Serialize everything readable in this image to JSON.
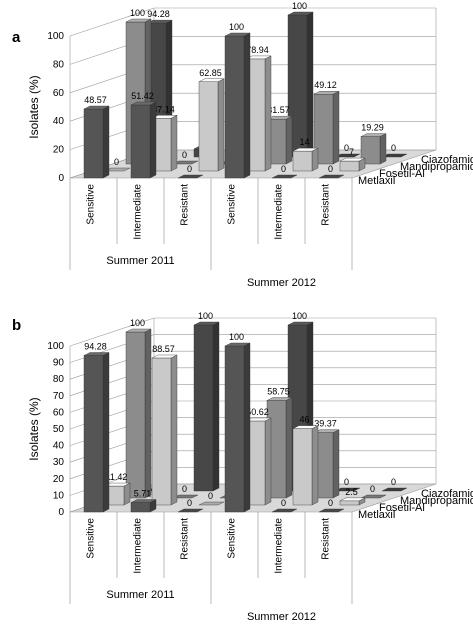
{
  "colors": {
    "Metlaxil": "#555555",
    "Fosetil-Al": "#c9c9c9",
    "Mandipropamid": "#8c8c8c",
    "Ciazofamid": "#474747",
    "grid": "#9a9a9a",
    "floor": "#d9d9d9"
  },
  "chart_data": [
    {
      "type": "bar",
      "panel_label": "a",
      "ylabel": "Isolates (%)",
      "ylim": [
        0,
        100
      ],
      "yticks": [
        0,
        20,
        40,
        60,
        80,
        100
      ],
      "categories": [
        "Sensitive",
        "Intermediate",
        "Resistant",
        "Sensitive",
        "Intermediate",
        "Resistant"
      ],
      "groups": [
        "Summer 2011",
        "Summer 2012"
      ],
      "series": [
        {
          "name": "Metlaxil",
          "values": [
            48.57,
            51.42,
            0,
            100,
            0,
            0
          ]
        },
        {
          "name": "Fosetil-Al",
          "values": [
            0,
            37.14,
            62.85,
            78.94,
            14,
            7
          ]
        },
        {
          "name": "Mandipropamid",
          "values": [
            100,
            0,
            0,
            31.57,
            49.12,
            19.29
          ]
        },
        {
          "name": "Ciazofamid",
          "values": [
            94.28,
            5.7,
            0,
            100,
            0,
            0
          ]
        }
      ]
    },
    {
      "type": "bar",
      "panel_label": "b",
      "ylabel": "Isolates (%)",
      "ylim": [
        0,
        100
      ],
      "yticks": [
        0,
        10,
        20,
        30,
        40,
        50,
        60,
        70,
        80,
        90,
        100
      ],
      "categories": [
        "Sensitive",
        "Intermediate",
        "Resistant",
        "Sensitive",
        "Intermediate",
        "Resistant"
      ],
      "groups": [
        "Summer 2011",
        "Summer 2012"
      ],
      "series": [
        {
          "name": "Metlaxil",
          "values": [
            94.28,
            5.71,
            0,
            100,
            0,
            0
          ]
        },
        {
          "name": "Fosetil-Al",
          "values": [
            11.42,
            88.57,
            0,
            50.62,
            46,
            2.5
          ]
        },
        {
          "name": "Mandipropamid",
          "values": [
            100,
            0,
            0,
            58.75,
            39.37,
            0
          ]
        },
        {
          "name": "Ciazofamid",
          "values": [
            0,
            100,
            0,
            100,
            0,
            0
          ]
        }
      ]
    }
  ]
}
